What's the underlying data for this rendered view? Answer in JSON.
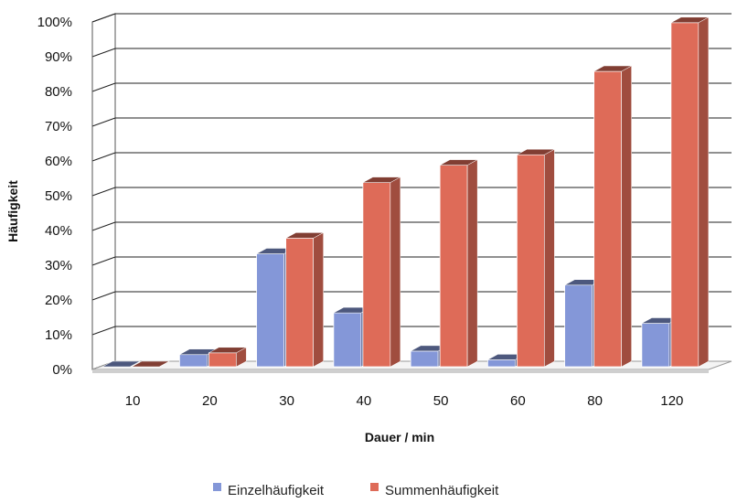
{
  "chart_data": {
    "type": "bar",
    "categories": [
      "10",
      "20",
      "30",
      "40",
      "50",
      "60",
      "80",
      "120"
    ],
    "series": [
      {
        "name": "Einzelhäufigkeit",
        "values": [
          0,
          3.5,
          32.5,
          15.5,
          4.5,
          2,
          23.5,
          12.5
        ],
        "color": "#8497d8"
      },
      {
        "name": "Summenhäufigkeit",
        "values": [
          0,
          4,
          37,
          53,
          58,
          61,
          85,
          99
        ],
        "color": "#de6b58"
      }
    ],
    "yticks": [
      "0%",
      "10%",
      "20%",
      "30%",
      "40%",
      "50%",
      "60%",
      "70%",
      "80%",
      "90%",
      "100%"
    ],
    "ylim": [
      0,
      100
    ],
    "xlabel": "Dauer / min",
    "ylabel": "Häufigkeit",
    "grid": true,
    "legend_position": "bottom",
    "style": "3d-clustered-column"
  }
}
